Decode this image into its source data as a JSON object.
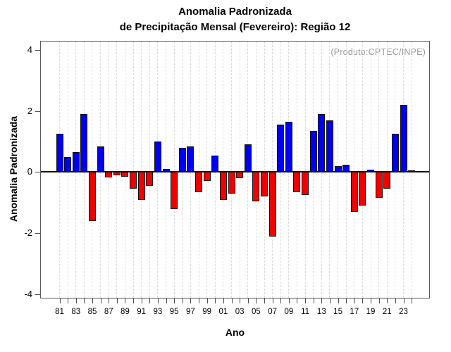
{
  "title": {
    "line1": "Anomalia Padronizada",
    "line2": "de Precipitação Mensal (Fevereiro): Região 12"
  },
  "chart_data": {
    "type": "bar",
    "title": "Anomalia Padronizada de Precipitação Mensal (Fevereiro): Região 12",
    "xlabel": "Ano",
    "ylabel": "Anomalia Padronizada",
    "annotation": "(Produto:CPTEC/INPE)",
    "ylim": [
      -4.11,
      4.27
    ],
    "yticks": [
      4,
      2,
      0,
      -2,
      -4
    ],
    "grid": "vertical-dashed-per-year",
    "legend_position": "none",
    "x_tick_label_every": 2,
    "categories": [
      "81",
      "82",
      "83",
      "84",
      "85",
      "86",
      "87",
      "88",
      "89",
      "90",
      "91",
      "92",
      "93",
      "94",
      "95",
      "96",
      "97",
      "98",
      "99",
      "00",
      "01",
      "02",
      "03",
      "04",
      "05",
      "06",
      "07",
      "08",
      "09",
      "10",
      "11",
      "12",
      "13",
      "14",
      "15",
      "16",
      "17",
      "18",
      "19",
      "20",
      "21",
      "22",
      "23",
      "24"
    ],
    "values": [
      1.25,
      0.5,
      0.65,
      1.9,
      -1.6,
      0.85,
      -0.17,
      -0.1,
      -0.15,
      -0.55,
      -0.9,
      -0.45,
      1.0,
      0.1,
      -1.2,
      0.8,
      0.85,
      -0.65,
      -0.3,
      0.55,
      -0.9,
      -0.7,
      -0.2,
      0.9,
      -0.95,
      -0.8,
      -2.1,
      1.55,
      1.65,
      -0.65,
      -0.75,
      1.35,
      1.9,
      1.7,
      0.2,
      0.25,
      -1.3,
      -1.1,
      0.07,
      -0.85,
      -0.55,
      1.25,
      2.2,
      0.05
    ],
    "positive_color": "#0000f0",
    "negative_color": "#f00000",
    "bar_border_color": "#111111",
    "gridline_color": "#dcdcdc",
    "axis_box_color": "#5a5a5a",
    "annotation_color": "#999999"
  }
}
